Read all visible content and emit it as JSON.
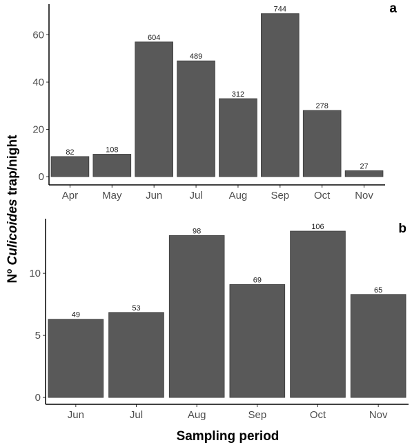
{
  "figure": {
    "ylabel_prefix": "Nº ",
    "ylabel_italic": "Culicoides",
    "ylabel_suffix": " trap/night",
    "xlabel": "Sampling period"
  },
  "chart_data": [
    {
      "type": "bar",
      "panel": "a",
      "categories": [
        "Apr",
        "May",
        "Jun",
        "Jul",
        "Aug",
        "Sep",
        "Oct",
        "Nov"
      ],
      "values": [
        8.5,
        9.5,
        57,
        49,
        33,
        69,
        28,
        2.5
      ],
      "data_labels": [
        "82",
        "108",
        "604",
        "489",
        "312",
        "744",
        "278",
        "27"
      ],
      "y_ticks": [
        0,
        20,
        40,
        60
      ],
      "ylim": [
        -3.5,
        73
      ],
      "bar_color": "#595959",
      "grid": false
    },
    {
      "type": "bar",
      "panel": "b",
      "categories": [
        "Jun",
        "Jul",
        "Aug",
        "Sep",
        "Oct",
        "Nov"
      ],
      "values": [
        6.3,
        6.85,
        13.05,
        9.1,
        13.4,
        8.3
      ],
      "data_labels": [
        "49",
        "53",
        "98",
        "69",
        "106",
        "65"
      ],
      "y_ticks": [
        0,
        5,
        10
      ],
      "ylim": [
        -0.55,
        14.4
      ],
      "bar_color": "#595959",
      "grid": false
    }
  ]
}
